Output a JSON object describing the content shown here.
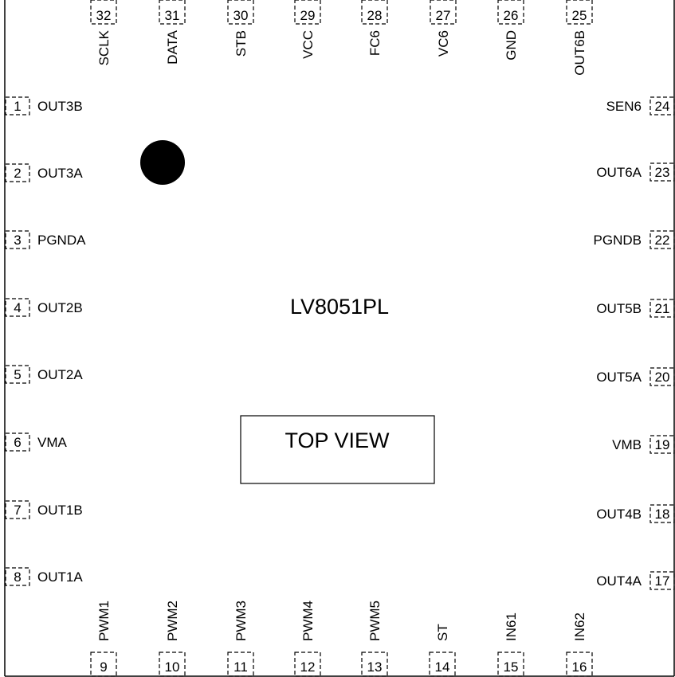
{
  "chip": {
    "part_number": "LV8051PL",
    "view_label": "TOP VIEW",
    "pin1_marker": "filled-circle"
  },
  "pins": {
    "left": [
      {
        "num": "1",
        "name": "OUT3B"
      },
      {
        "num": "2",
        "name": "OUT3A"
      },
      {
        "num": "3",
        "name": "PGNDA"
      },
      {
        "num": "4",
        "name": "OUT2B"
      },
      {
        "num": "5",
        "name": "OUT2A"
      },
      {
        "num": "6",
        "name": "VMA"
      },
      {
        "num": "7",
        "name": "OUT1B"
      },
      {
        "num": "8",
        "name": "OUT1A"
      }
    ],
    "bottom": [
      {
        "num": "9",
        "name": "PWM1"
      },
      {
        "num": "10",
        "name": "PWM2"
      },
      {
        "num": "11",
        "name": "PWM3"
      },
      {
        "num": "12",
        "name": "PWM4"
      },
      {
        "num": "13",
        "name": "PWM5"
      },
      {
        "num": "14",
        "name": "ST"
      },
      {
        "num": "15",
        "name": "IN61"
      },
      {
        "num": "16",
        "name": "IN62"
      }
    ],
    "right": [
      {
        "num": "17",
        "name": "OUT4A"
      },
      {
        "num": "18",
        "name": "OUT4B"
      },
      {
        "num": "19",
        "name": "VMB"
      },
      {
        "num": "20",
        "name": "OUT5A"
      },
      {
        "num": "21",
        "name": "OUT5B"
      },
      {
        "num": "22",
        "name": "PGNDB"
      },
      {
        "num": "23",
        "name": "OUT6A"
      },
      {
        "num": "24",
        "name": "SEN6"
      }
    ],
    "top": [
      {
        "num": "25",
        "name": "OUT6B"
      },
      {
        "num": "26",
        "name": "GND"
      },
      {
        "num": "27",
        "name": "VC6"
      },
      {
        "num": "28",
        "name": "FC6"
      },
      {
        "num": "29",
        "name": "VCC"
      },
      {
        "num": "30",
        "name": "STB"
      },
      {
        "num": "31",
        "name": "DATA"
      },
      {
        "num": "32",
        "name": "SCLK"
      }
    ]
  }
}
